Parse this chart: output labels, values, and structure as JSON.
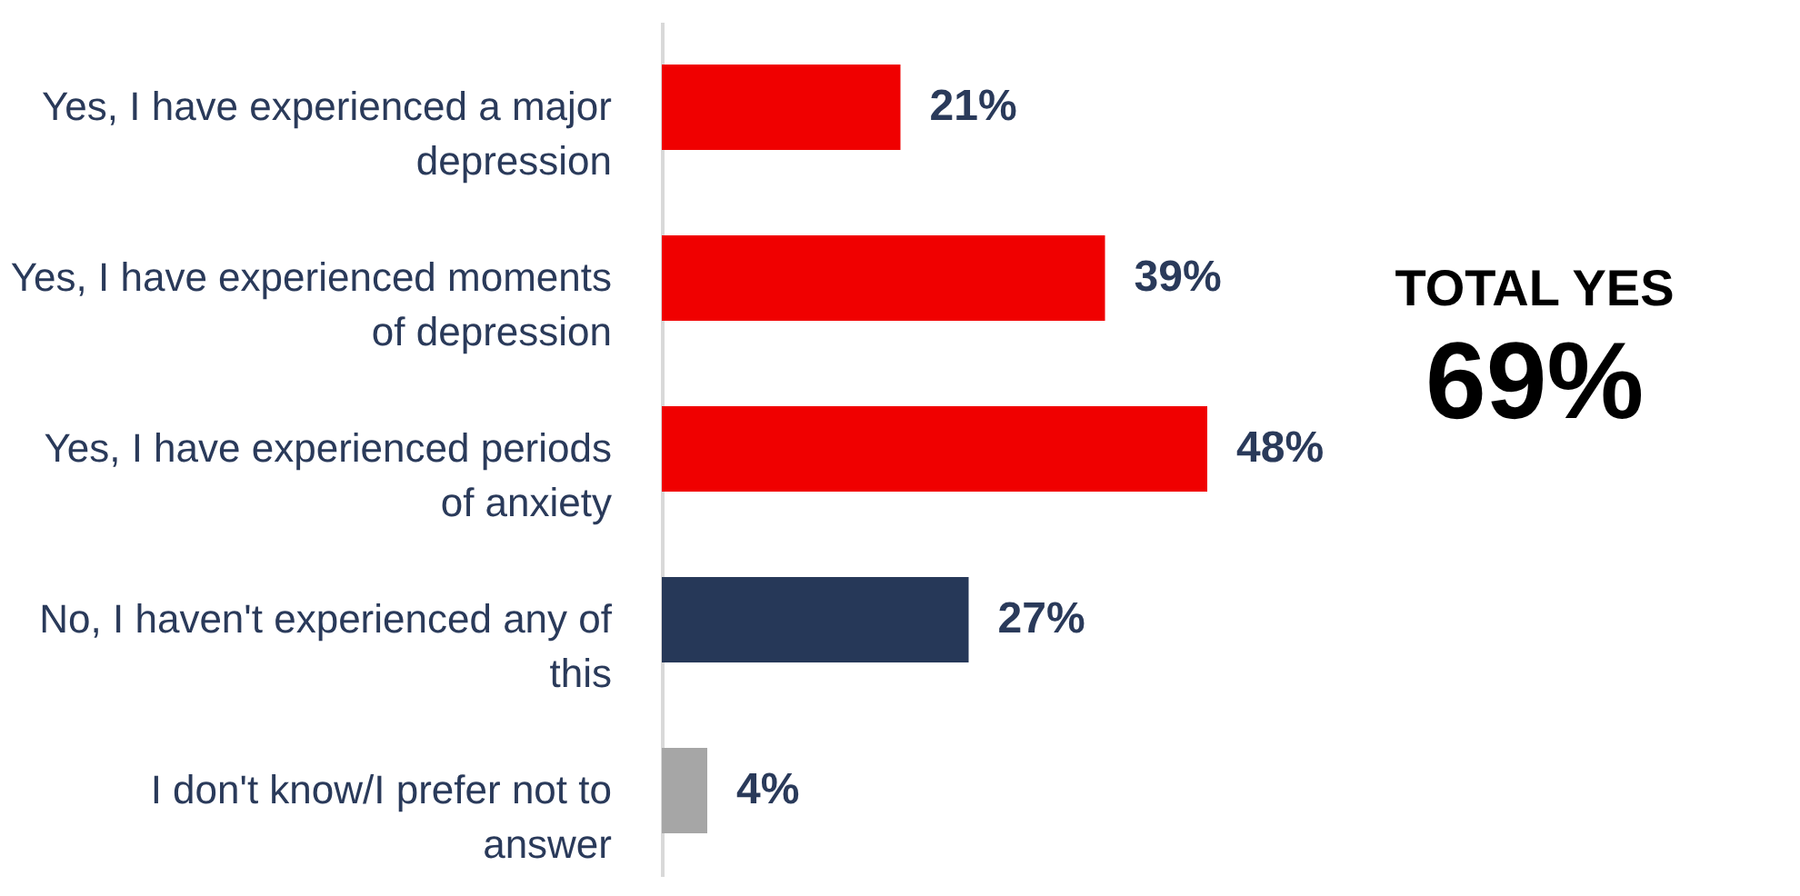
{
  "chart_data": {
    "type": "bar",
    "orientation": "horizontal",
    "categories": [
      "Yes, I have experienced a major depression",
      "Yes, I have experienced moments of depression",
      "Yes, I have experienced periods of anxiety",
      "No, I haven't experienced any of this",
      "I don't know/I prefer not to answer"
    ],
    "values": [
      21,
      39,
      48,
      27,
      4
    ],
    "colors": [
      "#f00000",
      "#f00000",
      "#f00000",
      "#263858",
      "#a6a6a6"
    ],
    "value_labels": [
      "21%",
      "39%",
      "48%",
      "27%",
      "4%"
    ],
    "tick_labels": "y",
    "annotations": [
      "TOTAL YES",
      "69%"
    ]
  }
}
